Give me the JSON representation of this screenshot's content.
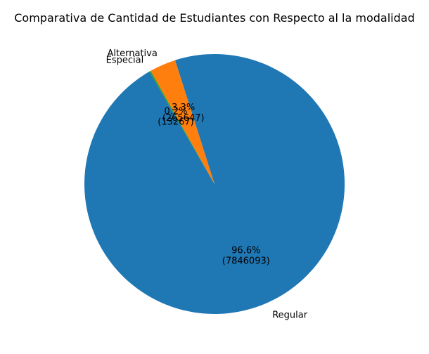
{
  "chart_data": {
    "type": "pie",
    "title": "Comparativa de Cantidad de Estudiantes con Respecto al la modalidad",
    "slices": [
      {
        "label": "Regular",
        "value": 7846093,
        "pct_label": "96.6%",
        "count_label": "(7846093)",
        "color": "#1f77b4"
      },
      {
        "label": "Alternativa",
        "value": 265647,
        "pct_label": "3.3%",
        "count_label": "(265647)",
        "color": "#ff7f0e"
      },
      {
        "label": "Especial",
        "value": 13267,
        "pct_label": "0.2%",
        "count_label": "(13267)",
        "color": "#2ca02c"
      }
    ],
    "start_angle_deg": 120,
    "direction": "counterclockwise"
  }
}
